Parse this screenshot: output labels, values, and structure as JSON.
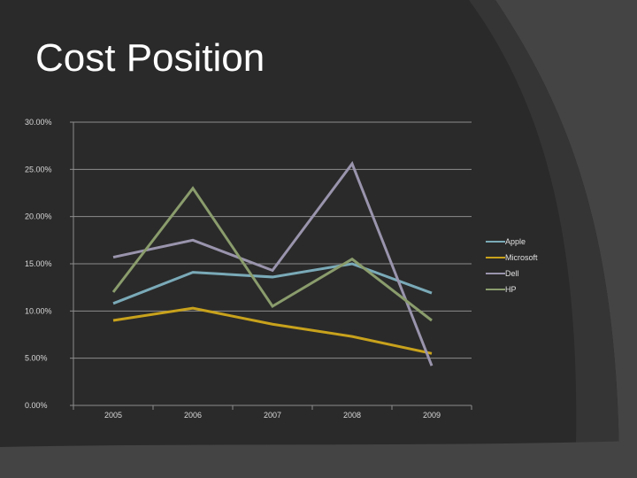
{
  "slide": {
    "title": "Cost Position"
  },
  "chart_data": {
    "type": "line",
    "categories": [
      "2005",
      "2006",
      "2007",
      "2008",
      "2009"
    ],
    "ylim": [
      0,
      0.3
    ],
    "yticks": [
      {
        "value": 0.0,
        "label": "0.00%"
      },
      {
        "value": 0.05,
        "label": "5.00%"
      },
      {
        "value": 0.1,
        "label": "10.00%"
      },
      {
        "value": 0.15,
        "label": "15.00%"
      },
      {
        "value": 0.2,
        "label": "20.00%"
      },
      {
        "value": 0.25,
        "label": "25.00%"
      },
      {
        "value": 0.3,
        "label": "30.00%"
      }
    ],
    "grid": true,
    "legend": "right",
    "series": [
      {
        "name": "Apple",
        "color": "#7aaab8",
        "values": [
          0.108,
          0.141,
          0.136,
          0.15,
          0.119
        ]
      },
      {
        "name": "Microsoft",
        "color": "#c8a21c",
        "values": [
          0.09,
          0.103,
          0.086,
          0.073,
          0.055
        ]
      },
      {
        "name": "Dell",
        "color": "#9a94ad",
        "values": [
          0.157,
          0.175,
          0.143,
          0.256,
          0.042
        ]
      },
      {
        "name": "HP",
        "color": "#8a9c6c",
        "values": [
          0.12,
          0.23,
          0.105,
          0.155,
          0.09
        ]
      }
    ]
  }
}
